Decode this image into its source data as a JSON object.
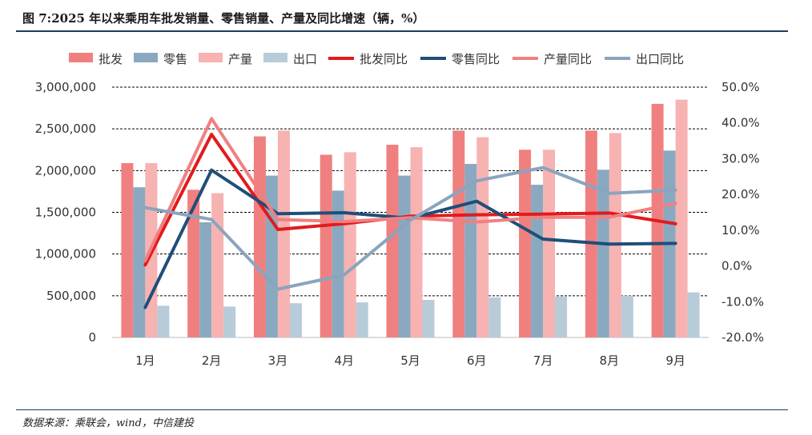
{
  "header": {
    "title": "图 7:2025 年以来乘用车批发销量、零售销量、产量及同比增速（辆，%）"
  },
  "footer": {
    "source": "数据来源：乘联会，wind，中信建投"
  },
  "chart_data": {
    "type": "bar",
    "categories": [
      "1月",
      "2月",
      "3月",
      "4月",
      "5月",
      "6月",
      "7月",
      "8月",
      "9月"
    ],
    "series": [
      {
        "name": "批发",
        "kind": "bar",
        "color": "#f08080",
        "values": [
          2090000,
          1770000,
          2410000,
          2190000,
          2310000,
          2480000,
          2250000,
          2480000,
          2800000
        ]
      },
      {
        "name": "零售",
        "kind": "bar",
        "color": "#8aa9c0",
        "values": [
          1800000,
          1380000,
          1940000,
          1760000,
          1940000,
          2080000,
          1830000,
          2010000,
          2240000
        ]
      },
      {
        "name": "产量",
        "kind": "bar",
        "color": "#f7b2b2",
        "values": [
          2090000,
          1730000,
          2480000,
          2220000,
          2280000,
          2400000,
          2250000,
          2450000,
          2850000
        ]
      },
      {
        "name": "出口",
        "kind": "bar",
        "color": "#b8cbd9",
        "values": [
          380000,
          370000,
          410000,
          420000,
          450000,
          480000,
          490000,
          500000,
          540000
        ]
      },
      {
        "name": "批发同比",
        "kind": "line",
        "color": "#e31a1c",
        "values": [
          0.3,
          36.8,
          10.2,
          11.8,
          13.9,
          14.3,
          14.5,
          14.8,
          11.8
        ]
      },
      {
        "name": "零售同比",
        "kind": "line",
        "color": "#1f4e79",
        "values": [
          -11.6,
          26.8,
          14.6,
          14.9,
          13.3,
          18.1,
          7.5,
          6.1,
          6.3
        ]
      },
      {
        "name": "产量同比",
        "kind": "line",
        "color": "#f08080",
        "values": [
          1.5,
          41.2,
          13.0,
          12.4,
          13.5,
          12.3,
          13.6,
          13.6,
          17.5
        ]
      },
      {
        "name": "出口同比",
        "kind": "line",
        "color": "#8aa4bd",
        "values": [
          16.3,
          13.0,
          -6.5,
          -2.5,
          12.8,
          23.8,
          27.5,
          20.3,
          21.2
        ]
      }
    ],
    "y_left": {
      "ylim": [
        0,
        3000000
      ],
      "ticks": [
        "0",
        "500,000",
        "1,000,000",
        "1,500,000",
        "2,000,000",
        "2,500,000",
        "3,000,000"
      ]
    },
    "y_right": {
      "ylim": [
        -20,
        50
      ],
      "ticks": [
        "-20.0%",
        "-10.0%",
        "0.0%",
        "10.0%",
        "20.0%",
        "30.0%",
        "40.0%",
        "50.0%"
      ]
    },
    "grid": true,
    "legend": "top"
  }
}
